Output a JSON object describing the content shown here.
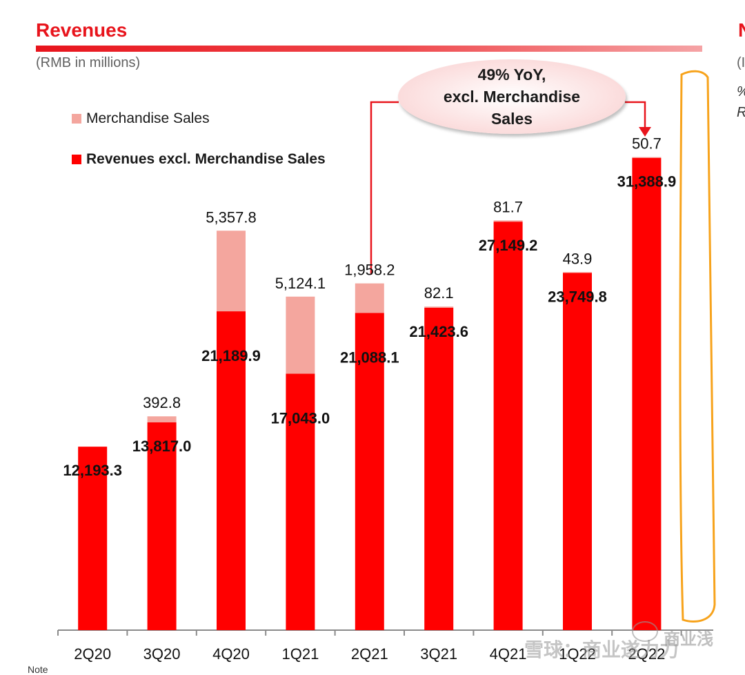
{
  "header": {
    "title": "Revenues",
    "subtitle": "(RMB in millions)",
    "edge_title": "N",
    "edge_subtitle": "(I",
    "edge_line1": "%",
    "edge_line2": "R"
  },
  "callout": {
    "text": "49% YoY,\nexcl. Merchandise\nSales"
  },
  "watermark": {
    "text": "雪球：商业遂力力",
    "brand": "商业浅"
  },
  "footnote": "Note",
  "colors": {
    "base": "#ff0000",
    "merch": "#f4a69e",
    "title": "#e8141c",
    "highlight": "#f7a31c"
  },
  "chart_data": {
    "type": "bar",
    "stacked": true,
    "title": "Revenues",
    "ylabel": "RMB in millions",
    "ylim": [
      0,
      35000
    ],
    "categories": [
      "2Q20",
      "3Q20",
      "4Q20",
      "1Q21",
      "2Q21",
      "3Q21",
      "4Q21",
      "1Q22",
      "2Q22"
    ],
    "series": [
      {
        "name": "Revenues excl. Merchandise Sales",
        "values": [
          12193.3,
          13817.0,
          21189.9,
          17043.0,
          21088.1,
          21423.6,
          27149.2,
          23749.8,
          31388.9
        ],
        "labels": [
          "12,193.3",
          "13,817.0",
          "21,189.9",
          "17,043.0",
          "21,088.1",
          "21,423.6",
          "27,149.2",
          "23,749.8",
          "31,388.9"
        ]
      },
      {
        "name": "Merchandise Sales",
        "values": [
          0,
          392.8,
          5357.8,
          5124.1,
          1958.2,
          82.1,
          81.7,
          43.9,
          50.7
        ],
        "labels": [
          "",
          "392.8",
          "5,357.8",
          "5,124.1",
          "1,958.2",
          "82.1",
          "81.7",
          "43.9",
          "50.7"
        ]
      }
    ],
    "legend": [
      "Merchandise Sales",
      "Revenues excl. Merchandise Sales"
    ]
  }
}
